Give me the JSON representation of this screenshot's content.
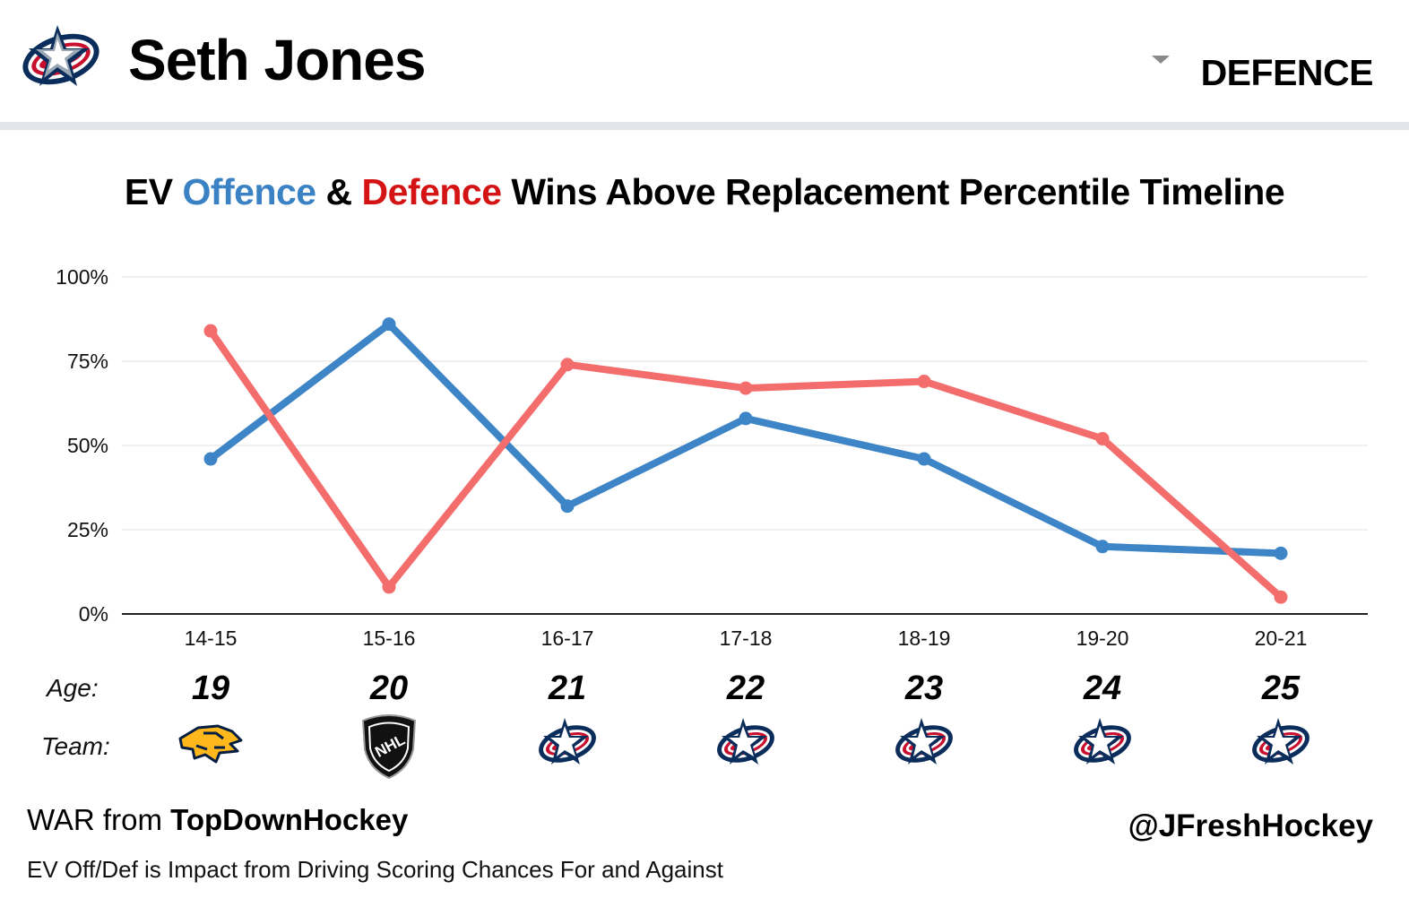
{
  "header": {
    "team_logo_icon": "blue-jackets-logo-icon",
    "player_name": "Seth Jones",
    "position": "DEFENCE",
    "dropdown_icon": "caret-down-icon"
  },
  "chart_data": {
    "type": "line",
    "title_parts": {
      "prefix": "EV ",
      "offence": "Offence",
      "amp": " & ",
      "defence": "Defence",
      "suffix": " Wins Above Replacement Percentile Timeline"
    },
    "categories": [
      "14-15",
      "15-16",
      "16-17",
      "17-18",
      "18-19",
      "19-20",
      "20-21"
    ],
    "ylim": [
      0,
      100
    ],
    "yticks": [
      {
        "value": 0,
        "label": "0%"
      },
      {
        "value": 25,
        "label": "25%"
      },
      {
        "value": 50,
        "label": "50%"
      },
      {
        "value": 75,
        "label": "75%"
      },
      {
        "value": 100,
        "label": "100%"
      }
    ],
    "grid": true,
    "legend": "none",
    "series": [
      {
        "key": "offence",
        "color": "#3d85c6",
        "values": [
          46,
          86,
          32,
          58,
          46,
          20,
          18
        ]
      },
      {
        "key": "defence",
        "color": "#f46d6d",
        "values": [
          84,
          8,
          74,
          67,
          69,
          52,
          5
        ]
      }
    ],
    "age_label": "Age:",
    "ages": [
      "19",
      "20",
      "21",
      "22",
      "23",
      "24",
      "25"
    ],
    "team_label": "Team:",
    "team_icons": [
      "predators-logo-icon",
      "nhl-logo-icon",
      "blue-jackets-logo-icon",
      "blue-jackets-logo-icon",
      "blue-jackets-logo-icon",
      "blue-jackets-logo-icon",
      "blue-jackets-logo-icon"
    ]
  },
  "footer": {
    "war_prefix": "WAR from ",
    "war_source": "TopDownHockey",
    "note": "EV Off/Def is Impact from Driving Scoring Chances For and Against",
    "handle": "@JFreshHockey"
  }
}
